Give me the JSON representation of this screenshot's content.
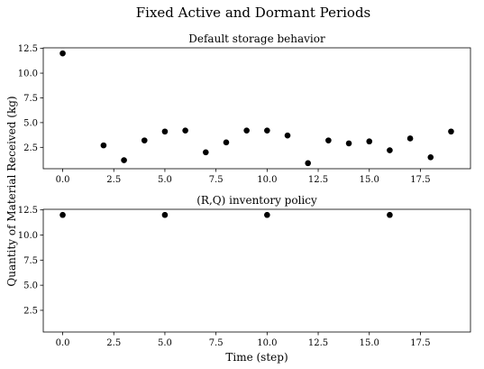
{
  "figure": {
    "suptitle": "Fixed Active and Dormant Periods",
    "shared_ylabel": "Quantity of Material Received (kg)"
  },
  "chart_data": [
    {
      "type": "scatter",
      "title": "Default storage behavior",
      "xlabel": "",
      "ylabel": "",
      "xlim": [
        -0.95,
        19.95
      ],
      "ylim": [
        0.34,
        12.56
      ],
      "xticks": [
        0.0,
        2.5,
        5.0,
        7.5,
        10.0,
        12.5,
        15.0,
        17.5
      ],
      "xtick_labels": [
        "0.0",
        "2.5",
        "5.0",
        "7.5",
        "10.0",
        "12.5",
        "15.0",
        "17.5"
      ],
      "yticks": [
        2.5,
        5.0,
        7.5,
        10.0,
        12.5
      ],
      "ytick_labels": [
        "2.5",
        "5.0",
        "7.5",
        "10.0",
        "12.5"
      ],
      "marker_color": "#000000",
      "points": [
        {
          "x": 0,
          "y": 12.0
        },
        {
          "x": 2,
          "y": 2.7
        },
        {
          "x": 3,
          "y": 1.2
        },
        {
          "x": 4,
          "y": 3.2
        },
        {
          "x": 5,
          "y": 4.1
        },
        {
          "x": 6,
          "y": 4.2
        },
        {
          "x": 7,
          "y": 2.0
        },
        {
          "x": 8,
          "y": 3.0
        },
        {
          "x": 9,
          "y": 4.2
        },
        {
          "x": 10,
          "y": 4.2
        },
        {
          "x": 11,
          "y": 3.7
        },
        {
          "x": 12,
          "y": 0.9
        },
        {
          "x": 13,
          "y": 3.2
        },
        {
          "x": 14,
          "y": 2.9
        },
        {
          "x": 15,
          "y": 3.1
        },
        {
          "x": 16,
          "y": 2.2
        },
        {
          "x": 17,
          "y": 3.4
        },
        {
          "x": 18,
          "y": 1.5
        },
        {
          "x": 19,
          "y": 4.1
        }
      ]
    },
    {
      "type": "scatter",
      "title": "(R,Q) inventory policy",
      "xlabel": "Time (step)",
      "ylabel": "",
      "xlim": [
        -0.95,
        19.95
      ],
      "ylim": [
        0.34,
        12.56
      ],
      "xticks": [
        0.0,
        2.5,
        5.0,
        7.5,
        10.0,
        12.5,
        15.0,
        17.5
      ],
      "xtick_labels": [
        "0.0",
        "2.5",
        "5.0",
        "7.5",
        "10.0",
        "12.5",
        "15.0",
        "17.5"
      ],
      "yticks": [
        2.5,
        5.0,
        7.5,
        10.0,
        12.5
      ],
      "ytick_labels": [
        "2.5",
        "5.0",
        "7.5",
        "10.0",
        "12.5"
      ],
      "marker_color": "#000000",
      "points": [
        {
          "x": 0,
          "y": 12.0
        },
        {
          "x": 5,
          "y": 12.0
        },
        {
          "x": 10,
          "y": 12.0
        },
        {
          "x": 16,
          "y": 12.0
        }
      ]
    }
  ]
}
